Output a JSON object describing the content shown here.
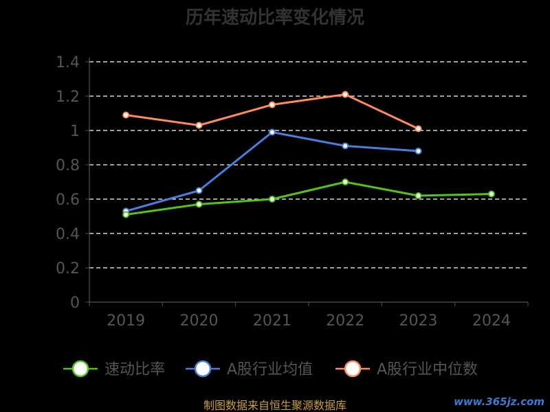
{
  "chart_data": {
    "type": "line",
    "title": "历年速动比率变化情况",
    "categories": [
      "2019",
      "2020",
      "2021",
      "2022",
      "2023",
      "2024"
    ],
    "ylim": [
      0,
      1.4
    ],
    "yticks": [
      "0",
      "0.2",
      "0.4",
      "0.6",
      "0.8",
      "1",
      "1.2",
      "1.4"
    ],
    "grid": true,
    "legend_position": "bottom",
    "series": [
      {
        "name": "速动比率",
        "color": "#52c41a",
        "values": [
          0.51,
          0.57,
          0.6,
          0.7,
          0.62,
          0.63
        ]
      },
      {
        "name": "A股行业均值",
        "color": "#4a7fe0",
        "values": [
          0.53,
          0.65,
          0.99,
          0.91,
          0.88,
          null
        ]
      },
      {
        "name": "A股行业中位数",
        "color": "#ff8c5a",
        "values": [
          1.09,
          1.03,
          1.15,
          1.21,
          1.01,
          null
        ]
      }
    ]
  },
  "source_text": "制图数据来自恒生聚源数据库",
  "watermark": "www.365jz.com"
}
